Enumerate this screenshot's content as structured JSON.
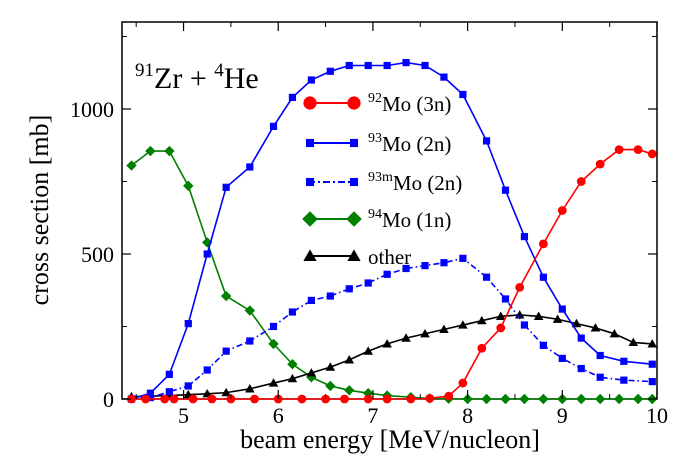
{
  "chart_data": {
    "type": "line",
    "annotation": {
      "sup1": "91",
      "base1": "Zr + ",
      "sup2": "4",
      "base2": "He"
    },
    "xlabel": "beam energy [MeV/nucleon]",
    "ylabel": "cross section [mb]",
    "xlim": [
      4.35,
      10.0
    ],
    "ylim": [
      0,
      1300
    ],
    "xticks": [
      5,
      6,
      7,
      8,
      9,
      10
    ],
    "yticks": [
      0,
      500,
      1000
    ],
    "grid": false,
    "legend_position": "center",
    "series": [
      {
        "legend_sup": "92",
        "legend_text": "Mo (3n)",
        "color": "#ff0000",
        "marker": "circle",
        "line": "solid",
        "x": [
          4.45,
          4.6,
          4.8,
          4.9,
          5.1,
          5.3,
          5.5,
          5.75,
          6.0,
          6.25,
          6.5,
          6.7,
          6.95,
          7.15,
          7.4,
          7.6,
          7.8,
          7.95,
          8.15,
          8.35,
          8.55,
          8.8,
          9.0,
          9.2,
          9.4,
          9.6,
          9.8,
          9.95
        ],
        "y": [
          0,
          0,
          0,
          0,
          0,
          0,
          0,
          0,
          0,
          0,
          0,
          0,
          0,
          0,
          0,
          2,
          10,
          55,
          175,
          245,
          385,
          535,
          650,
          750,
          810,
          860,
          860,
          845
        ]
      },
      {
        "legend_sup": "93",
        "legend_text": "Mo (2n)",
        "color": "#0000ff",
        "marker": "square",
        "line": "solid",
        "x": [
          4.45,
          4.65,
          4.85,
          5.05,
          5.25,
          5.45,
          5.7,
          5.95,
          6.15,
          6.35,
          6.55,
          6.75,
          6.95,
          7.15,
          7.35,
          7.55,
          7.75,
          7.95,
          8.2,
          8.4,
          8.6,
          8.8,
          9.0,
          9.2,
          9.4,
          9.65,
          9.95
        ],
        "y": [
          0,
          20,
          85,
          260,
          500,
          730,
          800,
          940,
          1040,
          1100,
          1130,
          1150,
          1150,
          1150,
          1160,
          1150,
          1110,
          1050,
          890,
          720,
          560,
          420,
          310,
          210,
          150,
          130,
          120
        ]
      },
      {
        "legend_sup": "93m",
        "legend_text": "Mo (2n)",
        "color": "#0000ff",
        "marker": "square",
        "line": "dashdot",
        "x": [
          4.45,
          4.65,
          4.85,
          5.05,
          5.25,
          5.45,
          5.7,
          5.95,
          6.15,
          6.35,
          6.55,
          6.75,
          6.95,
          7.15,
          7.35,
          7.55,
          7.75,
          7.95,
          8.2,
          8.4,
          8.6,
          8.8,
          9.0,
          9.2,
          9.4,
          9.65,
          9.95
        ],
        "y": [
          0,
          5,
          25,
          45,
          100,
          165,
          200,
          250,
          300,
          340,
          355,
          380,
          400,
          430,
          450,
          460,
          470,
          485,
          420,
          345,
          255,
          185,
          140,
          105,
          75,
          65,
          60
        ]
      },
      {
        "legend_sup": "94",
        "legend_text": "Mo (1n)",
        "color": "#008000",
        "marker": "diamond",
        "line": "solid",
        "x": [
          4.45,
          4.65,
          4.85,
          5.05,
          5.25,
          5.45,
          5.7,
          5.95,
          6.15,
          6.35,
          6.55,
          6.75,
          6.95,
          7.15,
          7.4,
          7.6,
          7.8,
          8.0,
          8.2,
          8.4,
          8.6,
          8.8,
          9.0,
          9.2,
          9.4,
          9.6,
          9.8,
          9.95
        ],
        "y": [
          805,
          855,
          855,
          735,
          540,
          355,
          305,
          190,
          120,
          75,
          45,
          30,
          20,
          12,
          6,
          2,
          1,
          0,
          0,
          0,
          0,
          0,
          0,
          0,
          0,
          0,
          0,
          0
        ]
      },
      {
        "legend_sup": "",
        "legend_text": "other",
        "color": "#000000",
        "marker": "triangle",
        "line": "solid",
        "x": [
          4.45,
          4.65,
          4.85,
          5.05,
          5.25,
          5.45,
          5.7,
          5.95,
          6.15,
          6.35,
          6.55,
          6.75,
          6.95,
          7.15,
          7.35,
          7.55,
          7.75,
          7.95,
          8.15,
          8.35,
          8.55,
          8.75,
          8.95,
          9.15,
          9.35,
          9.55,
          9.75,
          9.95
        ],
        "y": [
          8,
          10,
          12,
          15,
          18,
          22,
          35,
          55,
          70,
          90,
          110,
          135,
          165,
          190,
          210,
          225,
          240,
          255,
          270,
          285,
          290,
          285,
          275,
          260,
          245,
          225,
          195,
          190
        ]
      }
    ]
  }
}
